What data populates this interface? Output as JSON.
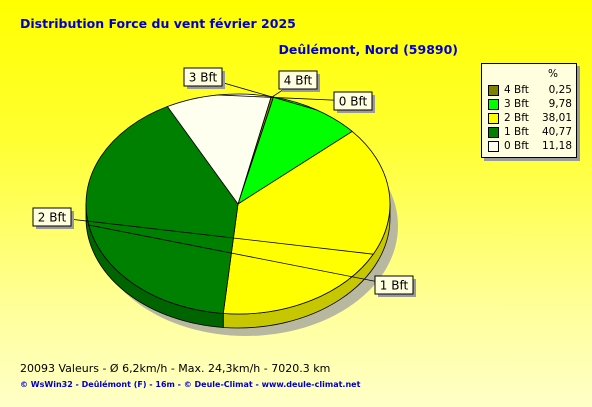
{
  "header": {
    "title": "Distribution Force du vent  février 2025",
    "location": "Deûlémont, Nord (59890)"
  },
  "chart_data": {
    "type": "pie",
    "title": "Distribution Force du vent  février 2025",
    "slices": [
      {
        "label": "4 Bft",
        "value": 0.25,
        "color": "#808000"
      },
      {
        "label": "3 Bft",
        "value": 9.78,
        "color": "#00ff00"
      },
      {
        "label": "2 Bft",
        "value": 38.01,
        "color": "#ffff00"
      },
      {
        "label": "1 Bft",
        "value": 40.77,
        "color": "#008000"
      },
      {
        "label": "0 Bft",
        "value": 11.18,
        "color": "#fffff0"
      }
    ],
    "legend_header": "%",
    "legend_position": "top-right"
  },
  "legend_values": [
    "0,25",
    "9,78",
    "38,01",
    "40,77",
    "11,18"
  ],
  "footer": {
    "stats": "20093 Valeurs   -   Ø 6,2km/h  -  Max. 24,3km/h   -   7020.3 km",
    "credits": "© WsWin32  -  Deûlémont (F) - 16m  -  © Deule-Climat - www.deule-climat.net"
  }
}
